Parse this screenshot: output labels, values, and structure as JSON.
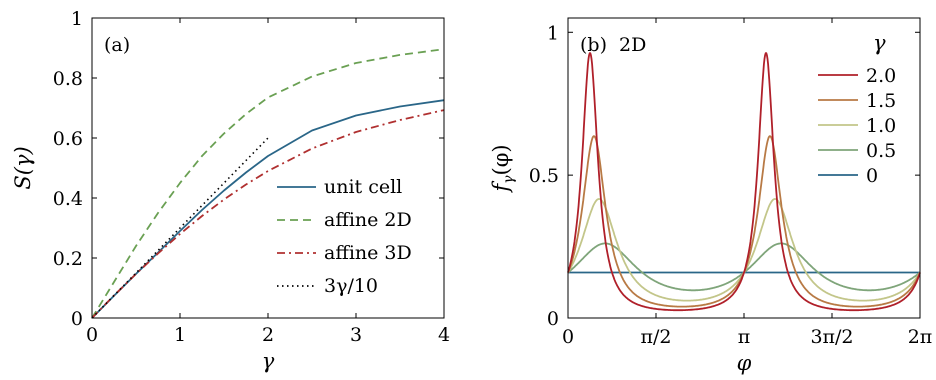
{
  "chart_data": [
    {
      "type": "line",
      "panel_label": "(a)",
      "xlabel": "γ",
      "ylabel": "S(γ)",
      "xlim": [
        0,
        4
      ],
      "ylim": [
        0,
        1
      ],
      "xticks": [
        0,
        1,
        2,
        3,
        4
      ],
      "yticks": [
        0,
        0.2,
        0.4,
        0.6,
        0.8,
        1
      ],
      "xtick_labels": [
        "0",
        "1",
        "2",
        "3",
        "4"
      ],
      "ytick_labels": [
        "0",
        "0.2",
        "0.4",
        "0.6",
        "0.8",
        "1"
      ],
      "grid": false,
      "legend_position": "bottom-right",
      "series": [
        {
          "name": "unit cell",
          "color": "#2a6688",
          "dash": "solid",
          "x": [
            0,
            0.25,
            0.5,
            0.75,
            1,
            1.25,
            1.5,
            1.75,
            2,
            2.5,
            3,
            3.5,
            4
          ],
          "y": [
            0,
            0.074,
            0.147,
            0.218,
            0.29,
            0.36,
            0.425,
            0.485,
            0.54,
            0.625,
            0.675,
            0.705,
            0.726
          ]
        },
        {
          "name": "affine 2D",
          "color": "#6aa053",
          "dash": "dashed",
          "x": [
            0,
            0.25,
            0.5,
            0.75,
            1,
            1.25,
            1.5,
            1.75,
            2,
            2.5,
            3,
            3.5,
            4
          ],
          "y": [
            0,
            0.12,
            0.24,
            0.35,
            0.45,
            0.54,
            0.615,
            0.68,
            0.735,
            0.805,
            0.85,
            0.877,
            0.896
          ]
        },
        {
          "name": "affine 3D",
          "color": "#b03030",
          "dash": "dashdot",
          "x": [
            0,
            0.25,
            0.5,
            0.75,
            1,
            1.25,
            1.5,
            1.75,
            2,
            2.5,
            3,
            3.5,
            4
          ],
          "y": [
            0,
            0.075,
            0.147,
            0.215,
            0.28,
            0.34,
            0.395,
            0.445,
            0.49,
            0.565,
            0.62,
            0.66,
            0.693
          ]
        },
        {
          "name": "3γ/10",
          "color": "#000000",
          "dash": "dotted",
          "x": [
            0,
            2
          ],
          "y": [
            0,
            0.6
          ]
        }
      ]
    },
    {
      "type": "line",
      "panel_label": "(b)",
      "panel_note": "2D",
      "xlabel": "φ",
      "ylabel": "fγ(φ)",
      "ylabel_main": "f",
      "ylabel_sub": "γ",
      "ylabel_arg": "(φ)",
      "xlim": [
        0,
        6.2832
      ],
      "ylim": [
        0,
        1.05
      ],
      "xticks": [
        0,
        1.5708,
        3.1416,
        4.7124,
        6.2832
      ],
      "xtick_labels": [
        "0",
        "π/2",
        "π",
        "3π/2",
        "2π"
      ],
      "yticks": [
        0,
        0.5,
        1
      ],
      "ytick_labels": [
        "0",
        "0.5",
        "1"
      ],
      "grid": false,
      "legend_title": "γ",
      "legend_position": "top-right",
      "series": [
        {
          "name": "2.0",
          "color": "#b0202a",
          "gamma": 2.0
        },
        {
          "name": "1.5",
          "color": "#b87a45",
          "gamma": 1.5
        },
        {
          "name": "1.0",
          "color": "#c3c68a",
          "gamma": 1.0
        },
        {
          "name": "0.5",
          "color": "#7fa57a",
          "gamma": 0.5
        },
        {
          "name": "0",
          "color": "#2a6688",
          "gamma": 0
        }
      ]
    }
  ]
}
